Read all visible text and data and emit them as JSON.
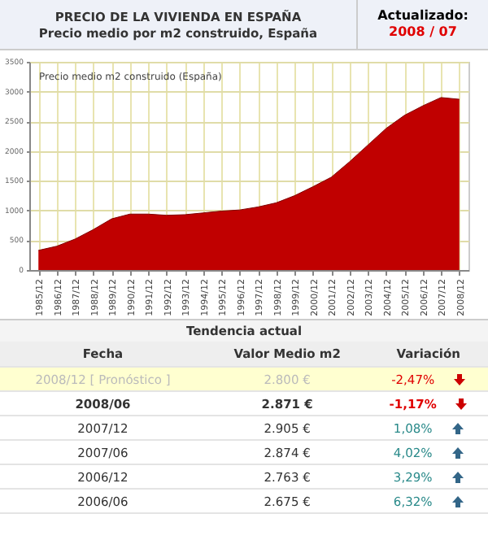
{
  "chart_data": [
    {
      "type": "area",
      "title": "PRECIO DE LA VIVIENDA EN ESPAÑA",
      "subtitle": "Precio medio por m2 construido, España",
      "annotations": [
        "Actualizado:",
        "2008 / 07",
        "Precio medio m2 construido (España)"
      ],
      "categories": [
        "1985/12",
        "1986/12",
        "1987/12",
        "1988/12",
        "1989/12",
        "1990/12",
        "1991/12",
        "1992/12",
        "1993/12",
        "1994/12",
        "1995/12",
        "1996/12",
        "1997/12",
        "1998/12",
        "1999/12",
        "2000/12",
        "2001/12",
        "2002/12",
        "2003/12",
        "2004/12",
        "2005/12",
        "2006/12",
        "2007/12",
        "2008/12"
      ],
      "values": [
        330,
        400,
        520,
        680,
        860,
        940,
        940,
        920,
        930,
        960,
        990,
        1010,
        1060,
        1130,
        1250,
        1400,
        1560,
        1820,
        2100,
        2380,
        2600,
        2760,
        2900,
        2870
      ],
      "color": "#c00000",
      "ylim": [
        0,
        3500
      ],
      "yticks": [
        0,
        500,
        1000,
        1500,
        2000,
        2500,
        3000,
        3500
      ],
      "grid": true
    },
    {
      "type": "other",
      "title": "Tendencia actual",
      "annotations": [
        "Fecha",
        "Valor Medio m2",
        "Variación",
        "2008/12 [ Pronóstico ]",
        "2.800 €",
        "-2,47%",
        "2008/06",
        "2.871 €",
        "-1,17%",
        "2007/12",
        "2.905 €",
        "1,08%",
        "2007/06",
        "2.874 €",
        "4,02%",
        "2006/12",
        "2.763 €",
        "3,29%",
        "2006/06",
        "2.675 €",
        "6,32%"
      ]
    }
  ]
}
